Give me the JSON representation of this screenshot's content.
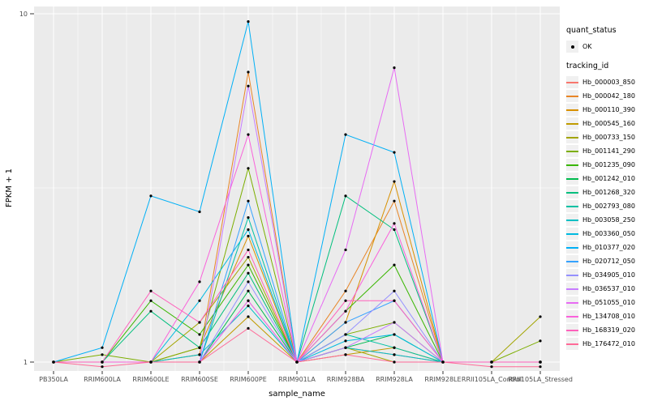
{
  "figure": {
    "xlabel": "sample_name",
    "ylabel": "FPKM + 1",
    "y_ticks": [
      "10",
      "1"
    ]
  },
  "legend": {
    "quant_status_title": "quant_status",
    "quant_status_items": [
      "OK"
    ],
    "tracking_id_title": "tracking_id"
  },
  "chart_data": {
    "type": "line",
    "title": "",
    "xlabel": "sample_name",
    "ylabel": "FPKM + 1",
    "yscale": "log10",
    "ylim": [
      1,
      10
    ],
    "grid": true,
    "legend_position": "right",
    "panel_bg": "#EBEBEB",
    "grid_color": "#FFFFFF",
    "point_color": "#000000",
    "categories": [
      "PB350LA",
      "RRIM600LA",
      "RRIM600LE",
      "RRIM600SE",
      "RRIM600PE",
      "RRIM901LA",
      "RRIM928BA",
      "RRIM928LA",
      "RRIM928LE",
      "RRII105LA_Control",
      "RRII105LA_Stressed"
    ],
    "series": [
      {
        "name": "Hb_000003_850",
        "color": "#F8766D",
        "values": [
          1,
          1,
          1,
          1,
          1.5,
          1,
          1.1,
          1.05,
          1,
          1,
          1
        ]
      },
      {
        "name": "Hb_000042_180",
        "color": "#E88526",
        "values": [
          1,
          1,
          1,
          1.05,
          6.8,
          1,
          1.6,
          2.9,
          1,
          1,
          1
        ]
      },
      {
        "name": "Hb_000110_390",
        "color": "#D89000",
        "values": [
          1,
          1,
          1,
          1.1,
          2.3,
          1,
          1.3,
          3.3,
          1,
          1,
          1
        ]
      },
      {
        "name": "Hb_000545_160",
        "color": "#C09B00",
        "values": [
          1,
          1,
          1,
          1,
          1.35,
          1,
          1.05,
          1.1,
          1,
          1,
          1
        ]
      },
      {
        "name": "Hb_000733_150",
        "color": "#A3A500",
        "values": [
          1,
          1,
          1,
          1.3,
          2.0,
          1,
          1.1,
          1,
          1,
          1,
          1.35
        ]
      },
      {
        "name": "Hb_001141_290",
        "color": "#7CAE00",
        "values": [
          1,
          1.05,
          1,
          1.1,
          3.6,
          1,
          1.2,
          1.3,
          1,
          1,
          1.15
        ]
      },
      {
        "name": "Hb_001235_090",
        "color": "#39B600",
        "values": [
          1,
          1,
          1.5,
          1.2,
          1.9,
          1,
          1.4,
          1.9,
          1,
          1,
          1
        ]
      },
      {
        "name": "Hb_001242_010",
        "color": "#00BB4E",
        "values": [
          1,
          1,
          1,
          1,
          1.6,
          1,
          1.1,
          1.2,
          1,
          1,
          1
        ]
      },
      {
        "name": "Hb_001268_320",
        "color": "#00BF7D",
        "values": [
          1,
          1,
          1.4,
          1.1,
          1.8,
          1,
          3.0,
          2.4,
          1,
          1,
          1
        ]
      },
      {
        "name": "Hb_002793_080",
        "color": "#00C1A3",
        "values": [
          1,
          1,
          1,
          1,
          2.6,
          1,
          1.2,
          1.1,
          1,
          1,
          1
        ]
      },
      {
        "name": "Hb_003058_250",
        "color": "#00BFC4",
        "values": [
          1,
          1,
          1,
          1.05,
          1.45,
          1,
          1.1,
          1.05,
          1,
          1,
          1
        ]
      },
      {
        "name": "Hb_003360_050",
        "color": "#00BAE0",
        "values": [
          1,
          1,
          1,
          1.5,
          2.4,
          1,
          1.15,
          1.2,
          1,
          1,
          1
        ]
      },
      {
        "name": "Hb_010377_020",
        "color": "#00B0F6",
        "values": [
          1,
          1.1,
          3.0,
          2.7,
          9.5,
          1,
          4.5,
          4.0,
          1,
          1,
          1
        ]
      },
      {
        "name": "Hb_020712_050",
        "color": "#35A2FF",
        "values": [
          1,
          1,
          1,
          1,
          2.9,
          1,
          1.3,
          1.5,
          1,
          1,
          1
        ]
      },
      {
        "name": "Hb_034905_010",
        "color": "#9590FF",
        "values": [
          1,
          1,
          1,
          1,
          1.7,
          1,
          1.2,
          1.6,
          1,
          1,
          1
        ]
      },
      {
        "name": "Hb_036537_010",
        "color": "#C77CFF",
        "values": [
          1,
          1,
          1,
          1,
          6.2,
          1,
          1.1,
          1.3,
          1,
          1,
          1
        ]
      },
      {
        "name": "Hb_051055_010",
        "color": "#E76BF3",
        "values": [
          1,
          1,
          1,
          1,
          1.5,
          1,
          2.1,
          7.0,
          1,
          1,
          1
        ]
      },
      {
        "name": "Hb_134708_010",
        "color": "#FA62DB",
        "values": [
          1,
          1,
          1,
          1.7,
          4.5,
          1,
          1.4,
          2.5,
          1,
          1,
          1
        ]
      },
      {
        "name": "Hb_168319_020",
        "color": "#FF62BC",
        "values": [
          1,
          1,
          1.6,
          1.3,
          2.1,
          1,
          1.5,
          1.5,
          1,
          1,
          1
        ]
      },
      {
        "name": "Hb_176472_010",
        "color": "#FF6A98",
        "values": [
          1,
          0.97,
          1,
          1,
          1.25,
          1,
          1.05,
          1,
          1,
          0.97,
          0.97
        ]
      }
    ]
  }
}
